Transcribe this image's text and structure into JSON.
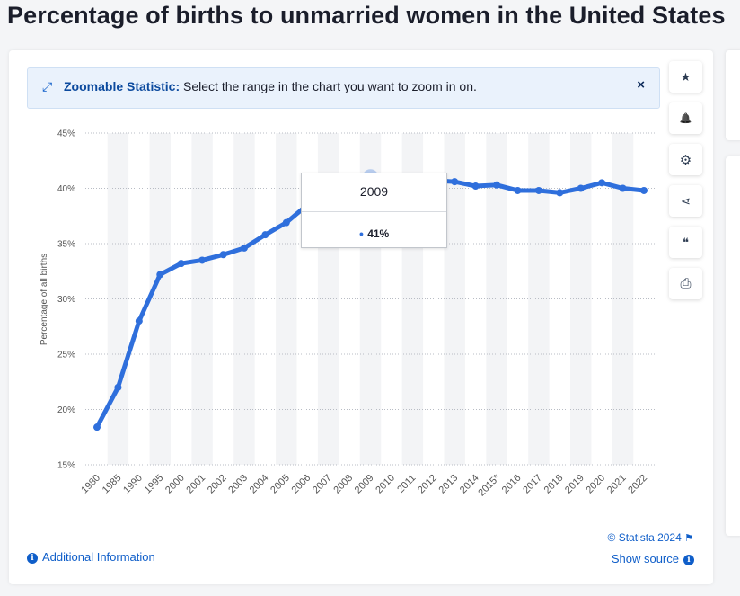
{
  "page": {
    "title": "Percentage of births to unmarried women in the United States"
  },
  "banner": {
    "icon": "expand-arrows-icon",
    "label": "Zoomable Statistic:",
    "text": "Select the range in the chart you want to zoom in on.",
    "close": "×"
  },
  "sidebar": {
    "buttons": [
      {
        "name": "favorite-star-icon",
        "glyph": "★"
      },
      {
        "name": "notification-bell-icon",
        "glyph": "🔔"
      },
      {
        "name": "settings-gear-icon",
        "glyph": "⚙"
      },
      {
        "name": "share-icon",
        "glyph": "⋖"
      },
      {
        "name": "citation-quote-icon",
        "glyph": "❝"
      },
      {
        "name": "print-icon",
        "glyph": "⎙"
      }
    ]
  },
  "footer": {
    "additional_info": "Additional Information",
    "copyright": "© Statista 2024",
    "show_source": "Show source"
  },
  "tooltip": {
    "year": "2009",
    "value": "41%"
  },
  "colors": {
    "series": "#2f6fdc",
    "accent": "#0f5ec9"
  },
  "chart_data": {
    "type": "line",
    "title": "Percentage of births to unmarried women in the United States",
    "xlabel": "",
    "ylabel": "Percentage of all births",
    "ylim": [
      15,
      45
    ],
    "yticks": [
      "15%",
      "20%",
      "25%",
      "30%",
      "35%",
      "40%",
      "45%"
    ],
    "grid": true,
    "categories": [
      "1980",
      "1985",
      "1990",
      "1995",
      "2000",
      "2001",
      "2002",
      "2003",
      "2004",
      "2005",
      "2006",
      "2007",
      "2008",
      "2009",
      "2010",
      "2011",
      "2012",
      "2013",
      "2014",
      "2015*",
      "2016",
      "2017",
      "2018",
      "2019",
      "2020",
      "2021",
      "2022"
    ],
    "series": [
      {
        "values": [
          18.4,
          22.0,
          28.0,
          32.2,
          33.2,
          33.5,
          34.0,
          34.6,
          35.8,
          36.9,
          38.5,
          39.7,
          40.6,
          41.0,
          40.8,
          40.7,
          40.7,
          40.6,
          40.2,
          40.3,
          39.8,
          39.8,
          39.6,
          40.0,
          40.5,
          40.0,
          39.8
        ]
      }
    ]
  }
}
